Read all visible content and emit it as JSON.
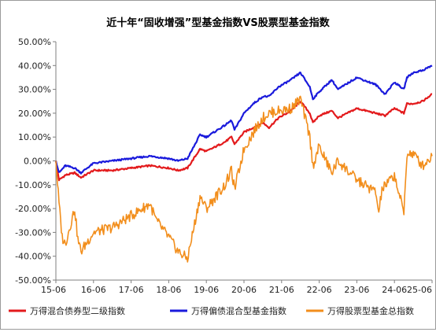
{
  "chart_data": {
    "type": "line",
    "title": "近十年“固收增强”型基金指数VS股票型基金指数",
    "xlabel": "",
    "ylabel": "",
    "ylim": [
      -50,
      50
    ],
    "y_ticks": [
      -50,
      -40,
      -30,
      -20,
      -10,
      0,
      10,
      20,
      30,
      40,
      50
    ],
    "y_tick_labels": [
      "-50.00%",
      "-40.00%",
      "-30.00%",
      "-20.00%",
      "-10.00%",
      "0.00%",
      "10.00%",
      "20.00%",
      "30.00%",
      "40.00%",
      "50.00%"
    ],
    "x_ticks": [
      "15-06",
      "16-06",
      "17-06",
      "18-06",
      "19-06",
      "20-06",
      "21-06",
      "22-06",
      "23-06",
      "24-06",
      "25-06"
    ],
    "legend_position": "bottom",
    "grid": false,
    "series": [
      {
        "name": "万得混合债券型二级指数",
        "color": "#e31a1c",
        "x": [
          "2015-06",
          "2015-07",
          "2015-09",
          "2015-12",
          "2016-02",
          "2016-06",
          "2016-12",
          "2017-06",
          "2017-12",
          "2018-06",
          "2018-09",
          "2018-12",
          "2019-02",
          "2019-04",
          "2019-06",
          "2019-12",
          "2020-02",
          "2020-03",
          "2020-06",
          "2020-09",
          "2020-12",
          "2021-02",
          "2021-05",
          "2021-09",
          "2021-12",
          "2022-03",
          "2022-04",
          "2022-06",
          "2022-10",
          "2022-12",
          "2023-06",
          "2023-12",
          "2024-03",
          "2024-06",
          "2024-09",
          "2024-10",
          "2024-12",
          "2025-03",
          "2025-06"
        ],
        "values": [
          0,
          -8,
          -6,
          -5,
          -7,
          -4,
          -4,
          -3,
          -2,
          -3,
          -4,
          -3,
          1,
          5,
          4,
          8,
          10,
          7,
          12,
          14,
          16,
          14,
          18,
          21,
          25,
          20,
          16,
          19,
          21,
          18,
          22,
          20,
          19,
          22,
          20,
          24,
          24,
          25,
          28
        ]
      },
      {
        "name": "万得偏债混合型基金指数",
        "color": "#1a1adc",
        "x": [
          "2015-06",
          "2015-07",
          "2015-09",
          "2015-12",
          "2016-02",
          "2016-06",
          "2016-12",
          "2017-06",
          "2017-12",
          "2018-06",
          "2018-09",
          "2018-12",
          "2019-02",
          "2019-04",
          "2019-06",
          "2019-12",
          "2020-02",
          "2020-03",
          "2020-06",
          "2020-09",
          "2020-12",
          "2021-02",
          "2021-05",
          "2021-09",
          "2021-12",
          "2022-03",
          "2022-04",
          "2022-06",
          "2022-10",
          "2022-12",
          "2023-06",
          "2023-12",
          "2024-03",
          "2024-06",
          "2024-09",
          "2024-10",
          "2024-12",
          "2025-03",
          "2025-06"
        ],
        "values": [
          0,
          -5,
          -2,
          -3,
          -5,
          -1,
          0,
          1,
          2,
          1,
          0,
          1,
          6,
          11,
          10,
          15,
          17,
          13,
          20,
          24,
          27,
          27,
          31,
          34,
          37,
          31,
          26,
          29,
          34,
          30,
          35,
          32,
          28,
          33,
          30,
          35,
          37,
          38,
          40
        ]
      },
      {
        "name": "万得股票型基金总指数",
        "color": "#f28e1c",
        "x": [
          "2015-06",
          "2015-07",
          "2015-08",
          "2015-09",
          "2015-10",
          "2015-12",
          "2016-01",
          "2016-02",
          "2016-06",
          "2016-12",
          "2017-06",
          "2017-12",
          "2018-02",
          "2018-06",
          "2018-09",
          "2018-12",
          "2019-02",
          "2019-04",
          "2019-06",
          "2019-12",
          "2020-02",
          "2020-03",
          "2020-06",
          "2020-09",
          "2020-12",
          "2021-02",
          "2021-05",
          "2021-09",
          "2021-12",
          "2022-03",
          "2022-04",
          "2022-06",
          "2022-10",
          "2022-12",
          "2023-06",
          "2023-12",
          "2024-01",
          "2024-02",
          "2024-06",
          "2024-09",
          "2024-10",
          "2024-12",
          "2025-03",
          "2025-06"
        ],
        "values": [
          0,
          -18,
          -32,
          -35,
          -30,
          -20,
          -33,
          -38,
          -30,
          -28,
          -23,
          -18,
          -25,
          -32,
          -38,
          -41,
          -28,
          -15,
          -20,
          -10,
          -4,
          -12,
          5,
          12,
          18,
          20,
          21,
          22,
          26,
          10,
          -2,
          6,
          -5,
          0,
          -8,
          -13,
          -22,
          -12,
          -6,
          -22,
          3,
          3,
          -2,
          2
        ]
      }
    ]
  }
}
